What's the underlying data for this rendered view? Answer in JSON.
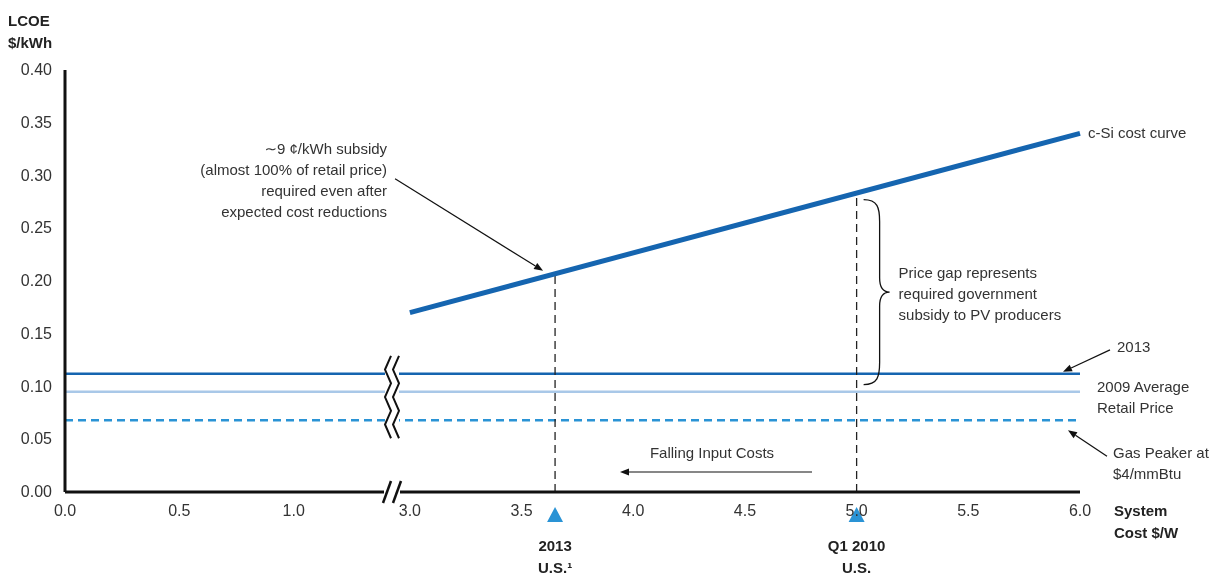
{
  "chart_data": [
    {
      "type": "line",
      "ylabel": "LCOE\n$/kWh",
      "xlim": [
        0,
        1.43
      ],
      "xticks": [
        {
          "value": 0,
          "label": "0.0"
        },
        {
          "value": 0.5,
          "label": "0.5"
        },
        {
          "value": 1,
          "label": "1.0"
        }
      ],
      "ylim": [
        0,
        0.4
      ],
      "yticks": [
        {
          "value": 0,
          "label": "0.00"
        },
        {
          "value": 0.05,
          "label": "0.05"
        },
        {
          "value": 0.1,
          "label": "0.10"
        },
        {
          "value": 0.15,
          "label": "0.15"
        },
        {
          "value": 0.2,
          "label": "0.20"
        },
        {
          "value": 0.25,
          "label": "0.25"
        },
        {
          "value": 0.3,
          "label": "0.30"
        },
        {
          "value": 0.35,
          "label": "0.35"
        },
        {
          "value": 0.4,
          "label": "0.40"
        }
      ],
      "ref_lines": [
        {
          "axis": "y",
          "value": 0.112,
          "color": "#1565b0",
          "line_style": "solid"
        },
        {
          "axis": "y",
          "value": 0.095,
          "color": "#a9c8e8",
          "line_style": "solid"
        },
        {
          "axis": "y",
          "value": 0.068,
          "color": "#2a93d5",
          "line_style": "dashed"
        }
      ]
    },
    {
      "type": "line",
      "xlabel": "System\nCost $/W",
      "x": [
        3.0,
        6.0
      ],
      "series": [
        {
          "name": "c-Si cost curve",
          "color": "#1565b0",
          "values": [
            0.17,
            0.34
          ]
        }
      ],
      "xlim": [
        2.92,
        6
      ],
      "xticks": [
        {
          "value": 3,
          "label": "3.0"
        },
        {
          "value": 3.5,
          "label": "3.5"
        },
        {
          "value": 4,
          "label": "4.0"
        },
        {
          "value": 4.5,
          "label": "4.5"
        },
        {
          "value": 5,
          "label": "5.0"
        },
        {
          "value": 5.5,
          "label": "5.5"
        },
        {
          "value": 6,
          "label": "6.0"
        }
      ],
      "ylim": [
        0,
        0.4
      ],
      "tick_labels": "x",
      "ref_lines": [
        {
          "axis": "y",
          "value": 0.112,
          "color": "#1565b0",
          "line_style": "solid"
        },
        {
          "axis": "y",
          "value": 0.095,
          "label": "2009 Average\nRetail Price",
          "color": "#a9c8e8",
          "line_style": "solid"
        },
        {
          "axis": "y",
          "value": 0.068,
          "color": "#2a93d5",
          "line_style": "dashed"
        },
        {
          "axis": "x",
          "value": 3.65,
          "color": "#222222",
          "line_style": "dashed"
        },
        {
          "axis": "x",
          "value": 5.0,
          "color": "#222222",
          "line_style": "dashed"
        }
      ],
      "annotations": [
        "∼9 ¢/kWh subsidy\n(almost 100% of retail price)\nrequired even after\nexpected cost reductions",
        {
          "text": "Price gap represents\nrequired government\nsubsidy to PV producers",
          "x": 5.0,
          "y": 0.19
        },
        "Falling Input Costs",
        "2013",
        "Gas Peaker at\n$4/mmBtu",
        "2013\nU.S.¹",
        "Q1 2010\nU.S."
      ],
      "marker": "none",
      "line_style": "solid"
    }
  ]
}
